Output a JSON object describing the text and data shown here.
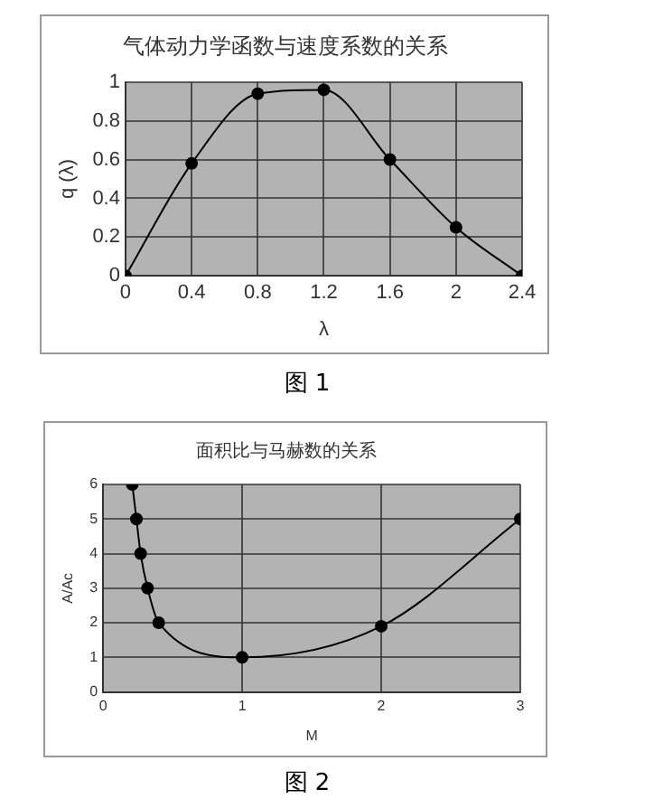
{
  "chart_data": [
    {
      "type": "line",
      "title": "气体动力学函数与速度系数的关系",
      "xlabel": "λ",
      "ylabel": "q (λ)",
      "x": [
        0,
        0.4,
        0.8,
        1.2,
        1.6,
        2,
        2.4
      ],
      "series": [
        {
          "color": "#000000",
          "values": [
            0,
            0.58,
            0.94,
            0.96,
            0.6,
            0.25,
            0
          ]
        }
      ],
      "xlim": [
        0,
        2.4
      ],
      "ylim": [
        0,
        1
      ],
      "xticks": [
        0,
        0.4,
        0.8,
        1.2,
        1.6,
        2,
        2.4
      ],
      "yticks": [
        0,
        0.2,
        0.4,
        0.6,
        0.8,
        1
      ],
      "grid": true,
      "legend": false,
      "marker": "circle",
      "line_style": "solid",
      "annotations": [
        "图 1"
      ]
    },
    {
      "type": "line",
      "title": "面积比与马赫数的关系",
      "xlabel": "M",
      "ylabel": "A/Ac",
      "x": [
        0.21,
        0.24,
        0.27,
        0.32,
        0.4,
        1,
        2,
        3
      ],
      "series": [
        {
          "color": "#000000",
          "values": [
            6,
            5,
            4,
            3,
            2,
            1,
            1.9,
            5
          ]
        }
      ],
      "xlim": [
        0,
        3
      ],
      "ylim": [
        0,
        6
      ],
      "xticks": [
        0,
        1,
        2,
        3
      ],
      "yticks": [
        0,
        1,
        2,
        3,
        4,
        5,
        6
      ],
      "grid": true,
      "legend": false,
      "marker": "circle",
      "line_style": "solid",
      "annotations": [
        "图 2"
      ]
    }
  ]
}
